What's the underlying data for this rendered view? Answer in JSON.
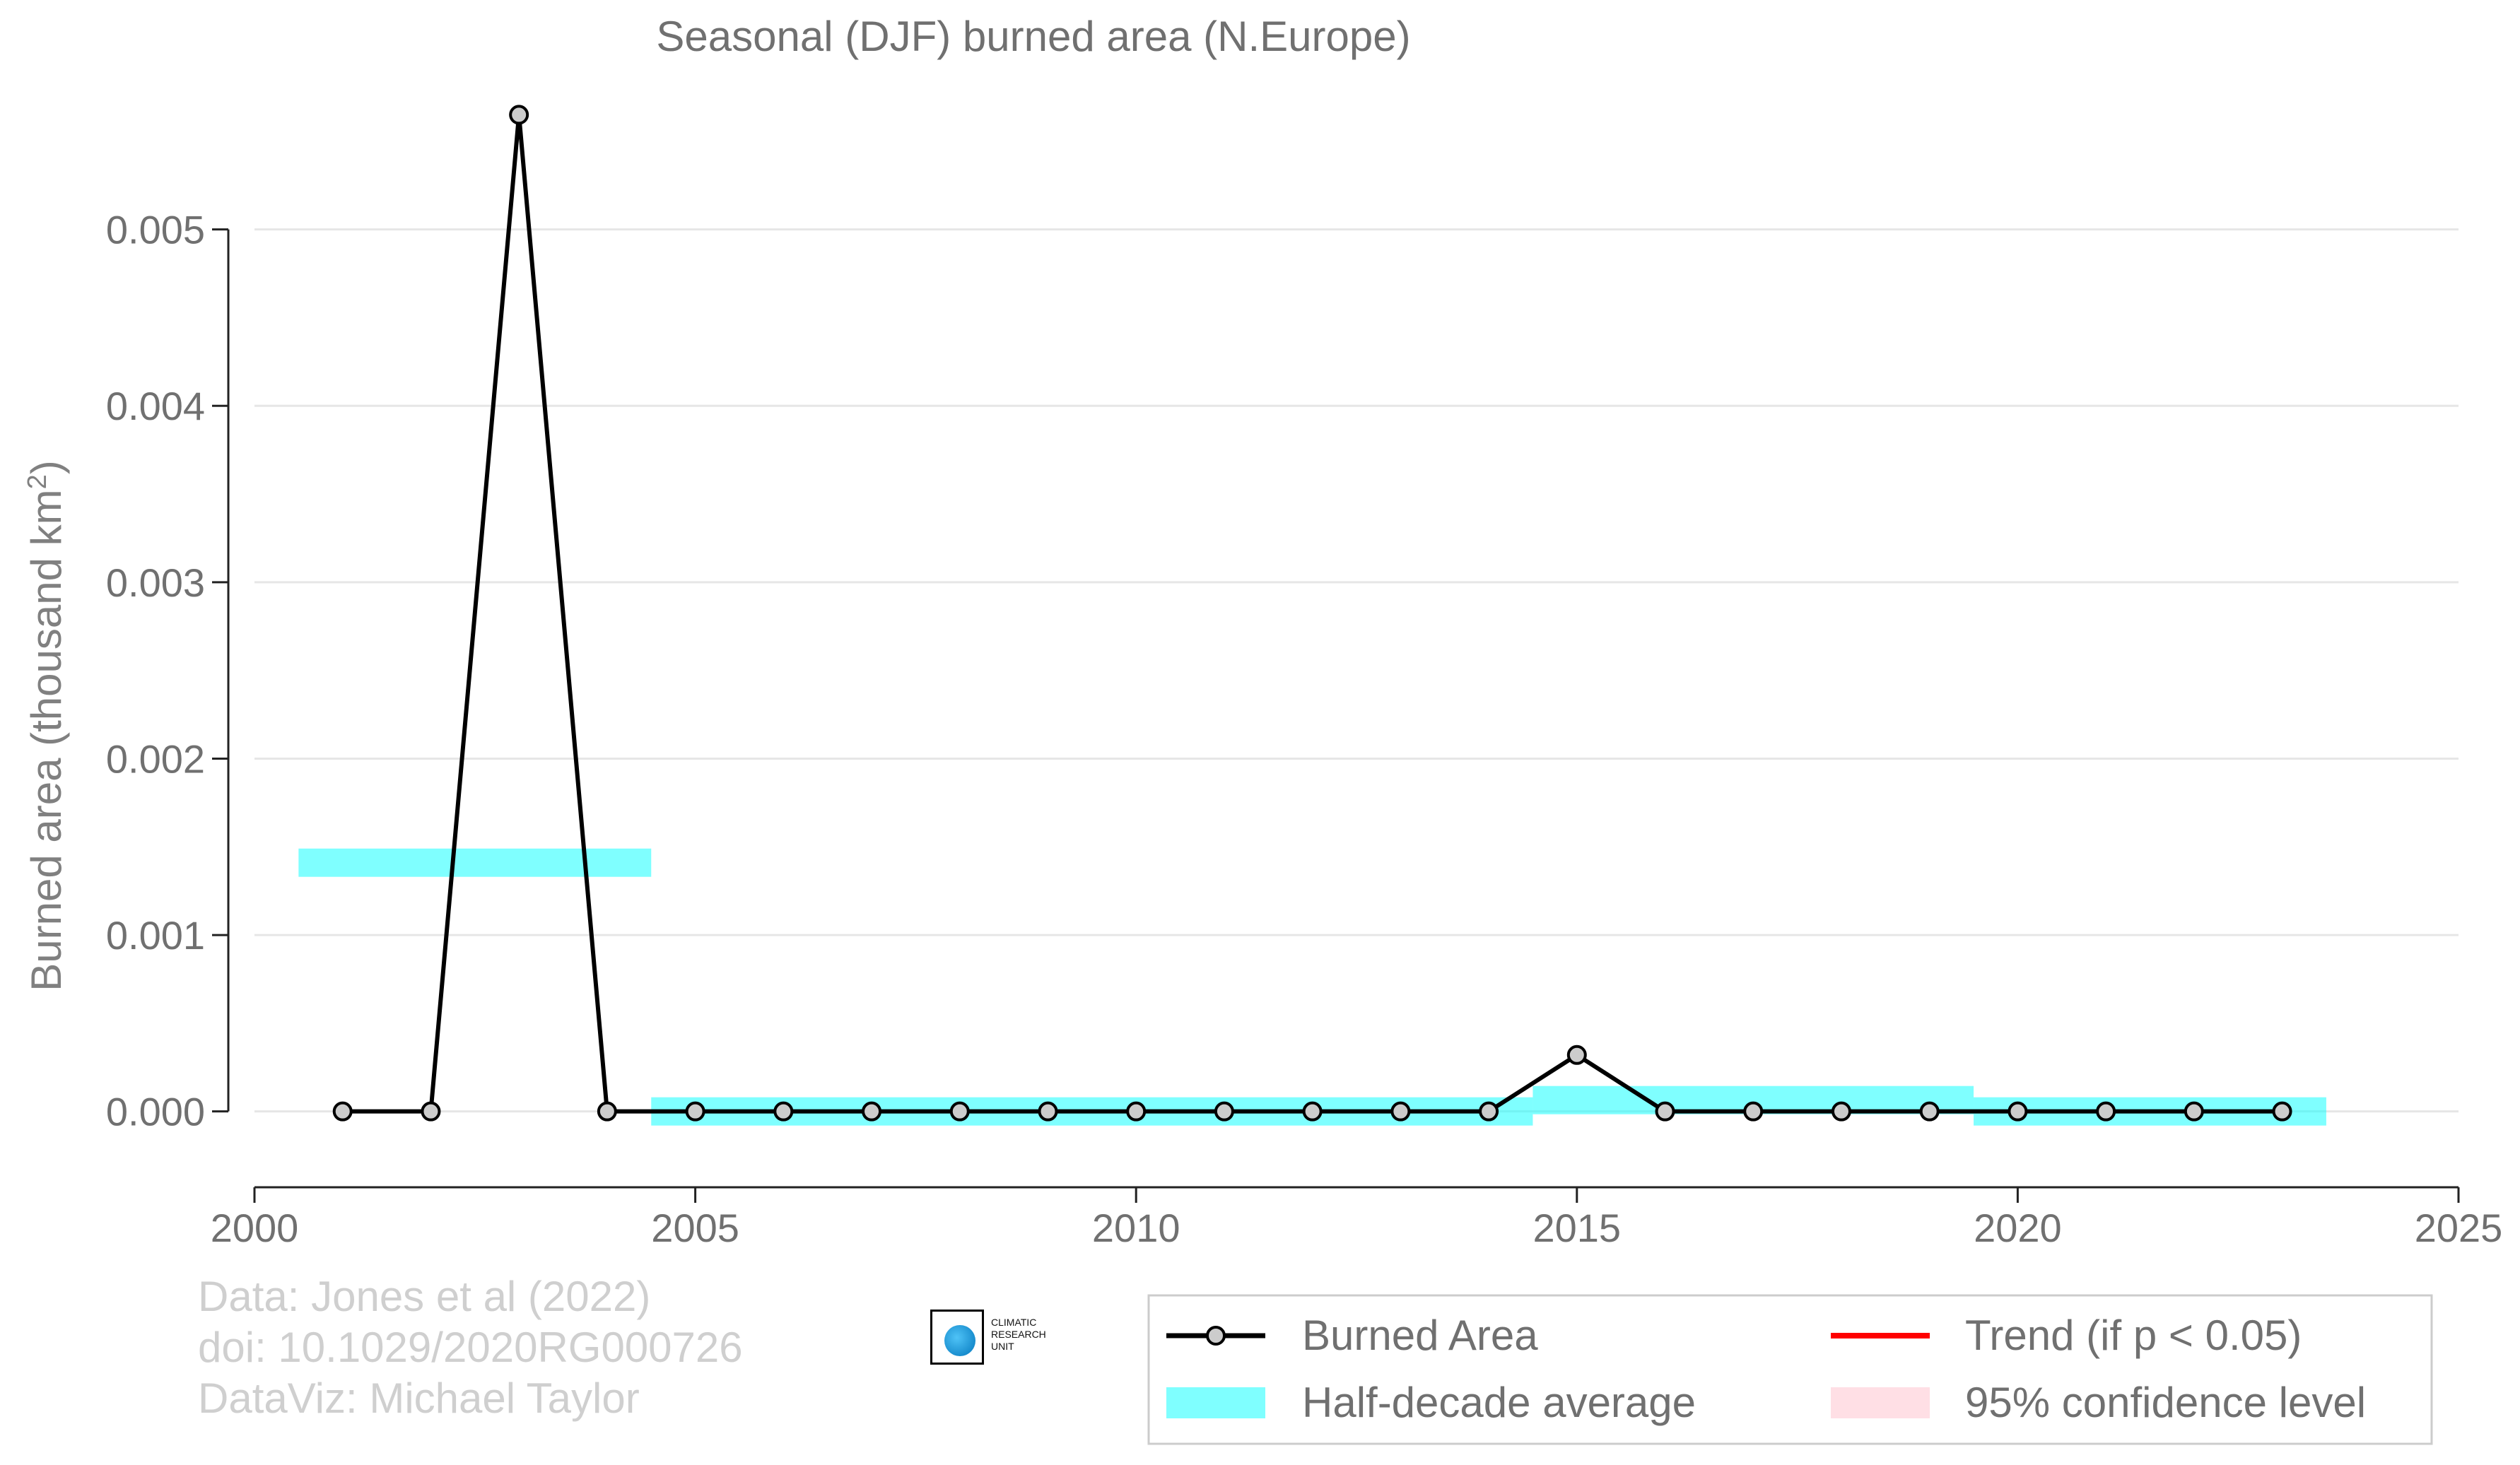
{
  "chart_data": {
    "type": "line",
    "title": "Seasonal (DJF) burned area (N.Europe)",
    "xlabel": "",
    "ylabel": "Burned area (thousand km",
    "ylabel_sup": "2",
    "ylabel_close": ")",
    "xlim": [
      2000,
      2025
    ],
    "ylim": [
      -0.00043,
      0.0059
    ],
    "xticks": [
      2000,
      2005,
      2010,
      2015,
      2020,
      2025
    ],
    "yticks": [
      0.0,
      0.001,
      0.002,
      0.003,
      0.004,
      0.005
    ],
    "ytick_labels": [
      "0.000",
      "0.001",
      "0.002",
      "0.003",
      "0.004",
      "0.005"
    ],
    "grid": "horizontal",
    "series": [
      {
        "name": "Burned Area",
        "color": "#000000",
        "marker_fill": "#cccccc",
        "x": [
          2001,
          2002,
          2003,
          2004,
          2005,
          2006,
          2007,
          2008,
          2009,
          2010,
          2011,
          2012,
          2013,
          2014,
          2015,
          2016,
          2017,
          2018,
          2019,
          2020,
          2021,
          2022,
          2023
        ],
        "y": [
          0.0,
          0.0,
          0.00565,
          0.0,
          0.0,
          0.0,
          0.0,
          0.0,
          0.0,
          0.0,
          0.0,
          0.0,
          0.0,
          0.0,
          0.00032,
          0.0,
          0.0,
          0.0,
          0.0,
          0.0,
          0.0,
          0.0,
          0.0
        ]
      }
    ],
    "half_decade_average": {
      "name": "Half-decade average",
      "color": "#00ffff",
      "segments": [
        {
          "x_start": 2000.5,
          "x_end": 2004.5,
          "value": 0.00141
        },
        {
          "x_start": 2004.5,
          "x_end": 2014.5,
          "value": 0.0
        },
        {
          "x_start": 2014.5,
          "x_end": 2019.5,
          "value": 6.4e-05
        },
        {
          "x_start": 2019.5,
          "x_end": 2023.5,
          "value": 0.0
        }
      ]
    },
    "legend": {
      "placement": "bottom-right",
      "items": [
        {
          "label": "Burned Area",
          "kind": "line-marker",
          "color": "#000000"
        },
        {
          "label": "Trend (if p < 0.05)",
          "kind": "line",
          "color": "#ff0000"
        },
        {
          "label": "Half-decade average",
          "kind": "band",
          "color": "#00ffff"
        },
        {
          "label": "95% confidence level",
          "kind": "band",
          "color": "#ffc0cb"
        }
      ]
    }
  },
  "footer": {
    "line1": "Data: Jones et al (2022)",
    "line2": "doi: 10.1029/2020RG000726",
    "line3": "DataViz: Michael Taylor"
  },
  "logo": {
    "line1": "CLIMATIC",
    "line2": "RESEARCH",
    "line3": "UNIT"
  }
}
